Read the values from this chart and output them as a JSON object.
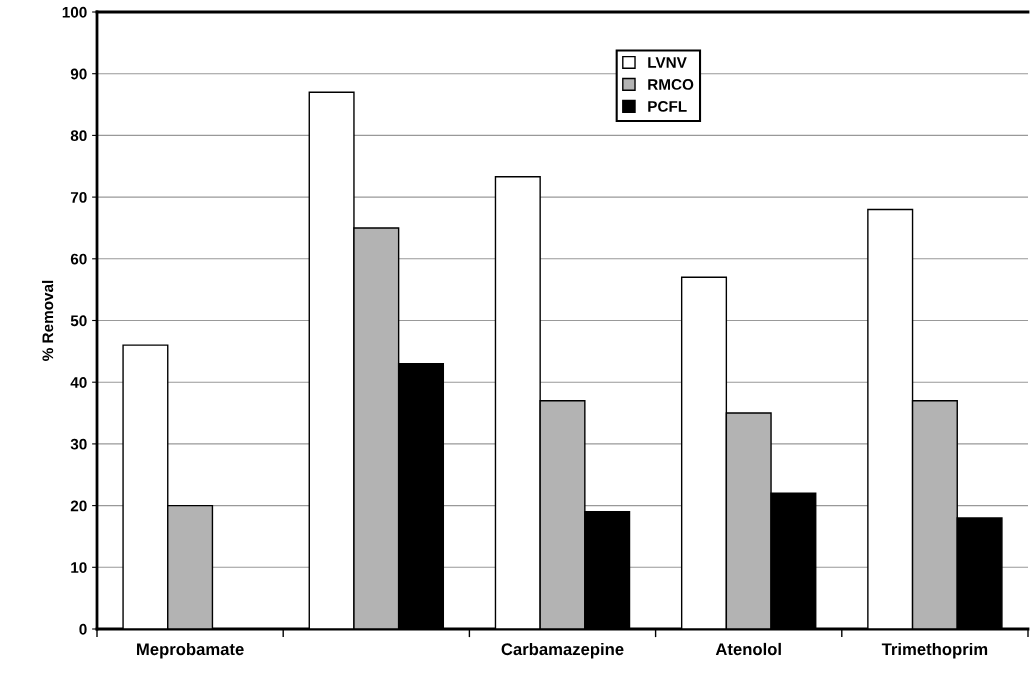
{
  "chart_data": {
    "type": "bar",
    "ylabel": "% Removal",
    "categories": [
      "Meprobamate",
      null,
      "Carbamazepine",
      "Atenolol",
      "Trimethoprim"
    ],
    "series": [
      {
        "name": "LVNV",
        "color": "#ffffff",
        "values": [
          46,
          87,
          73.3,
          57,
          68
        ]
      },
      {
        "name": "RMCO",
        "color": "#b3b3b3",
        "values": [
          20,
          65,
          37,
          35,
          37
        ]
      },
      {
        "name": "PCFL",
        "color": "#000000",
        "values": [
          0,
          43,
          19,
          22,
          18
        ]
      }
    ],
    "ylim": [
      0,
      100
    ],
    "yticks": [
      0,
      10,
      20,
      30,
      40,
      50,
      60,
      70,
      80,
      90,
      100
    ],
    "grid": "y",
    "legend": "top"
  }
}
